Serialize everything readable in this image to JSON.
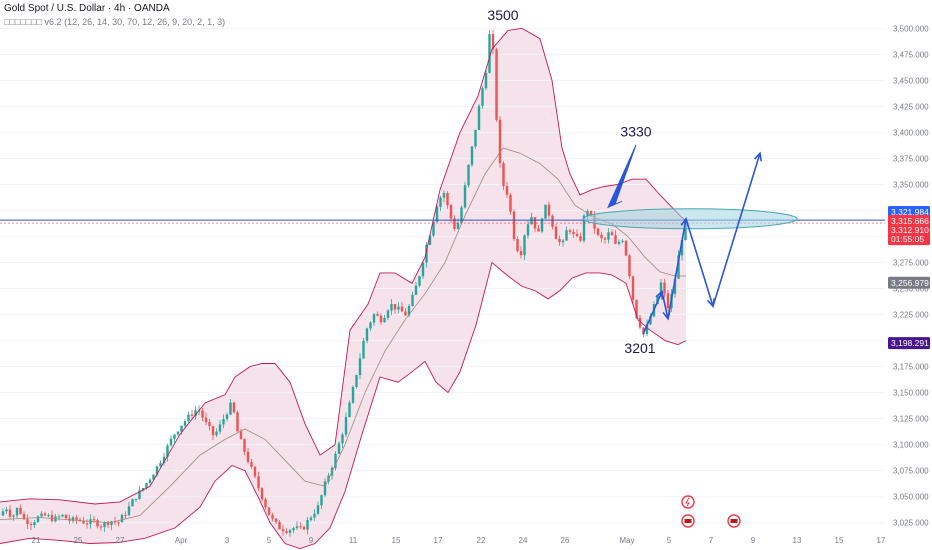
{
  "header": {
    "symbol_line": "Gold Spot / U.S. Dollar · 4h · OANDA",
    "indicator_line": "□□□□□□□ v6.2 (12, 26, 14, 30, 70, 12, 26, 9, 20, 2, 1, 3)"
  },
  "colors": {
    "up": "#26a69a",
    "down": "#ef5350",
    "band_fill": "#f3dde6",
    "band_line": "#c2185b",
    "basis": "#a1887f",
    "arrow": "#2b55d9",
    "level_line": "#3050c8",
    "ellipse": "#9fd6df",
    "tag_blue": "#2962ff",
    "tag_red": "#f23645",
    "tag_gray": "#787b86",
    "tag_purple": "#4a148c"
  },
  "chart_data": {
    "type": "candlestick",
    "ylim": [
      3018,
      3508
    ],
    "y_ticks": [
      3025,
      3050,
      3075,
      3100,
      3125,
      3150,
      3175,
      3200,
      3225,
      3250,
      3275,
      3300,
      3325,
      3350,
      3375,
      3400,
      3425,
      3450,
      3475,
      3500
    ],
    "y_tick_labels": [
      "3,025.000",
      "3,050.000",
      "3,075.000",
      "3,100.000",
      "3,125.000",
      "3,150.000",
      "3,175.000",
      "3,200.000",
      "3,225.000",
      "3,250.000",
      "3,275.000",
      "3,300.000",
      "3,325.000",
      "3,350.000",
      "3,375.000",
      "3,400.000",
      "3,425.000",
      "3,450.000",
      "3,475.000",
      "3,500.000"
    ],
    "x_tick_labels": [
      "21",
      "25",
      "27",
      "Apr",
      "3",
      "5",
      "9",
      "11",
      "15",
      "17",
      "22",
      "24",
      "26",
      "May",
      "5",
      "7",
      "9",
      "13",
      "15",
      "17"
    ],
    "price_path": [
      [
        0,
        3032
      ],
      [
        6,
        3040
      ],
      [
        12,
        3030
      ],
      [
        18,
        3040
      ],
      [
        24,
        3028
      ],
      [
        31,
        3025
      ],
      [
        38,
        3030
      ],
      [
        46,
        3032
      ],
      [
        54,
        3028
      ],
      [
        62,
        3032
      ],
      [
        70,
        3027
      ],
      [
        78,
        3028
      ],
      [
        86,
        3025
      ],
      [
        94,
        3026
      ],
      [
        102,
        3022
      ],
      [
        110,
        3027
      ],
      [
        118,
        3025
      ],
      [
        126,
        3035
      ],
      [
        134,
        3048
      ],
      [
        142,
        3057
      ],
      [
        150,
        3068
      ],
      [
        158,
        3080
      ],
      [
        166,
        3095
      ],
      [
        174,
        3110
      ],
      [
        182,
        3120
      ],
      [
        190,
        3128
      ],
      [
        198,
        3135
      ],
      [
        206,
        3120
      ],
      [
        214,
        3108
      ],
      [
        220,
        3118
      ],
      [
        226,
        3130
      ],
      [
        232,
        3140
      ],
      [
        238,
        3110
      ],
      [
        244,
        3095
      ],
      [
        250,
        3080
      ],
      [
        256,
        3065
      ],
      [
        262,
        3050
      ],
      [
        268,
        3035
      ],
      [
        274,
        3025
      ],
      [
        280,
        3020
      ],
      [
        287,
        3018
      ],
      [
        294,
        3020
      ],
      [
        302,
        3018
      ],
      [
        310,
        3030
      ],
      [
        318,
        3040
      ],
      [
        326,
        3065
      ],
      [
        334,
        3085
      ],
      [
        342,
        3110
      ],
      [
        350,
        3140
      ],
      [
        358,
        3175
      ],
      [
        366,
        3210
      ],
      [
        374,
        3225
      ],
      [
        382,
        3220
      ],
      [
        390,
        3235
      ],
      [
        398,
        3230
      ],
      [
        406,
        3225
      ],
      [
        414,
        3245
      ],
      [
        420,
        3265
      ],
      [
        426,
        3290
      ],
      [
        432,
        3310
      ],
      [
        438,
        3335
      ],
      [
        444,
        3342
      ],
      [
        450,
        3320
      ],
      [
        456,
        3305
      ],
      [
        462,
        3330
      ],
      [
        468,
        3365
      ],
      [
        474,
        3395
      ],
      [
        480,
        3430
      ],
      [
        486,
        3460
      ],
      [
        490,
        3498
      ],
      [
        494,
        3470
      ],
      [
        498,
        3380
      ],
      [
        503,
        3350
      ],
      [
        508,
        3340
      ],
      [
        514,
        3300
      ],
      [
        520,
        3280
      ],
      [
        526,
        3310
      ],
      [
        532,
        3320
      ],
      [
        538,
        3300
      ],
      [
        544,
        3330
      ],
      [
        550,
        3320
      ],
      [
        556,
        3300
      ],
      [
        562,
        3290
      ],
      [
        568,
        3310
      ],
      [
        574,
        3300
      ],
      [
        580,
        3295
      ],
      [
        586,
        3330
      ],
      [
        592,
        3315
      ],
      [
        598,
        3300
      ],
      [
        604,
        3295
      ],
      [
        610,
        3305
      ],
      [
        616,
        3290
      ],
      [
        622,
        3300
      ],
      [
        628,
        3275
      ],
      [
        632,
        3245
      ],
      [
        636,
        3225
      ],
      [
        640,
        3215
      ],
      [
        644,
        3205
      ],
      [
        650,
        3222
      ],
      [
        656,
        3238
      ],
      [
        661,
        3255
      ],
      [
        665,
        3242
      ],
      [
        668,
        3232
      ],
      [
        672,
        3245
      ],
      [
        676,
        3265
      ],
      [
        680,
        3290
      ],
      [
        684,
        3308
      ],
      [
        686,
        3314
      ]
    ],
    "upper_band": [
      [
        0,
        3045
      ],
      [
        30,
        3048
      ],
      [
        60,
        3047
      ],
      [
        95,
        3043
      ],
      [
        120,
        3045
      ],
      [
        150,
        3060
      ],
      [
        180,
        3110
      ],
      [
        205,
        3140
      ],
      [
        225,
        3148
      ],
      [
        235,
        3165
      ],
      [
        250,
        3175
      ],
      [
        262,
        3178
      ],
      [
        275,
        3178
      ],
      [
        290,
        3160
      ],
      [
        305,
        3120
      ],
      [
        320,
        3090
      ],
      [
        335,
        3100
      ],
      [
        350,
        3210
      ],
      [
        368,
        3235
      ],
      [
        380,
        3265
      ],
      [
        395,
        3265
      ],
      [
        412,
        3255
      ],
      [
        425,
        3280
      ],
      [
        440,
        3345
      ],
      [
        460,
        3400
      ],
      [
        478,
        3435
      ],
      [
        492,
        3480
      ],
      [
        508,
        3498
      ],
      [
        522,
        3500
      ],
      [
        540,
        3490
      ],
      [
        552,
        3450
      ],
      [
        562,
        3385
      ],
      [
        570,
        3360
      ],
      [
        580,
        3340
      ],
      [
        592,
        3345
      ],
      [
        604,
        3348
      ],
      [
        618,
        3350
      ],
      [
        632,
        3355
      ],
      [
        646,
        3355
      ],
      [
        660,
        3340
      ],
      [
        670,
        3330
      ],
      [
        680,
        3320
      ],
      [
        686,
        3315
      ]
    ],
    "lower_band": [
      [
        0,
        3005
      ],
      [
        30,
        3010
      ],
      [
        60,
        3008
      ],
      [
        90,
        3005
      ],
      [
        118,
        3006
      ],
      [
        145,
        3010
      ],
      [
        175,
        3020
      ],
      [
        200,
        3040
      ],
      [
        215,
        3065
      ],
      [
        232,
        3080
      ],
      [
        245,
        3075
      ],
      [
        258,
        3050
      ],
      [
        270,
        3025
      ],
      [
        285,
        3005
      ],
      [
        300,
        3000
      ],
      [
        315,
        3005
      ],
      [
        330,
        3020
      ],
      [
        345,
        3055
      ],
      [
        362,
        3110
      ],
      [
        380,
        3165
      ],
      [
        398,
        3160
      ],
      [
        412,
        3170
      ],
      [
        425,
        3180
      ],
      [
        436,
        3160
      ],
      [
        448,
        3150
      ],
      [
        460,
        3170
      ],
      [
        476,
        3215
      ],
      [
        492,
        3275
      ],
      [
        508,
        3262
      ],
      [
        522,
        3252
      ],
      [
        535,
        3248
      ],
      [
        548,
        3240
      ],
      [
        560,
        3248
      ],
      [
        572,
        3260
      ],
      [
        586,
        3265
      ],
      [
        600,
        3265
      ],
      [
        612,
        3263
      ],
      [
        626,
        3255
      ],
      [
        638,
        3220
      ],
      [
        650,
        3210
      ],
      [
        665,
        3200
      ],
      [
        678,
        3196
      ],
      [
        686,
        3200
      ]
    ],
    "basis": [
      [
        0,
        3028
      ],
      [
        40,
        3030
      ],
      [
        80,
        3027
      ],
      [
        110,
        3025
      ],
      [
        140,
        3032
      ],
      [
        170,
        3060
      ],
      [
        200,
        3090
      ],
      [
        225,
        3105
      ],
      [
        245,
        3115
      ],
      [
        265,
        3105
      ],
      [
        285,
        3085
      ],
      [
        305,
        3065
      ],
      [
        325,
        3060
      ],
      [
        345,
        3100
      ],
      [
        365,
        3150
      ],
      [
        385,
        3190
      ],
      [
        405,
        3220
      ],
      [
        425,
        3245
      ],
      [
        445,
        3275
      ],
      [
        465,
        3320
      ],
      [
        485,
        3360
      ],
      [
        503,
        3385
      ],
      [
        520,
        3380
      ],
      [
        540,
        3370
      ],
      [
        558,
        3355
      ],
      [
        575,
        3330
      ],
      [
        595,
        3318
      ],
      [
        612,
        3312
      ],
      [
        628,
        3300
      ],
      [
        645,
        3280
      ],
      [
        660,
        3266
      ],
      [
        675,
        3262
      ],
      [
        686,
        3262
      ]
    ],
    "level_line": 3315.666,
    "dashed_line": 3312.91,
    "ellipse_center": [
      3317
    ],
    "annotations": [
      {
        "text": "3500",
        "price": 3508,
        "at": 503
      },
      {
        "text": "3330",
        "price": 3396,
        "at": 636
      },
      {
        "text": "3201",
        "price": 3188,
        "at": 640
      }
    ],
    "projection_path": [
      [
        643,
        3206
      ],
      [
        662,
        3247
      ],
      [
        668,
        3221
      ],
      [
        686,
        3317
      ],
      [
        713,
        3233
      ],
      [
        760,
        3380
      ]
    ],
    "price_tags": [
      {
        "text": "3,321.984",
        "price": 3323.5,
        "color": "tag_blue"
      },
      {
        "text": "3,315.666",
        "price": 3315.0,
        "color": "tag_red"
      },
      {
        "text": "3,312.910",
        "price": 3306.0,
        "color": "tag_red"
      },
      {
        "text": "01:55:05",
        "price": 3297.5,
        "color": "tag_red"
      },
      {
        "text": "3,256.979",
        "price": 3255.5,
        "color": "tag_gray"
      },
      {
        "text": "3,198.291",
        "price": 3197.5,
        "color": "tag_purple"
      }
    ]
  }
}
